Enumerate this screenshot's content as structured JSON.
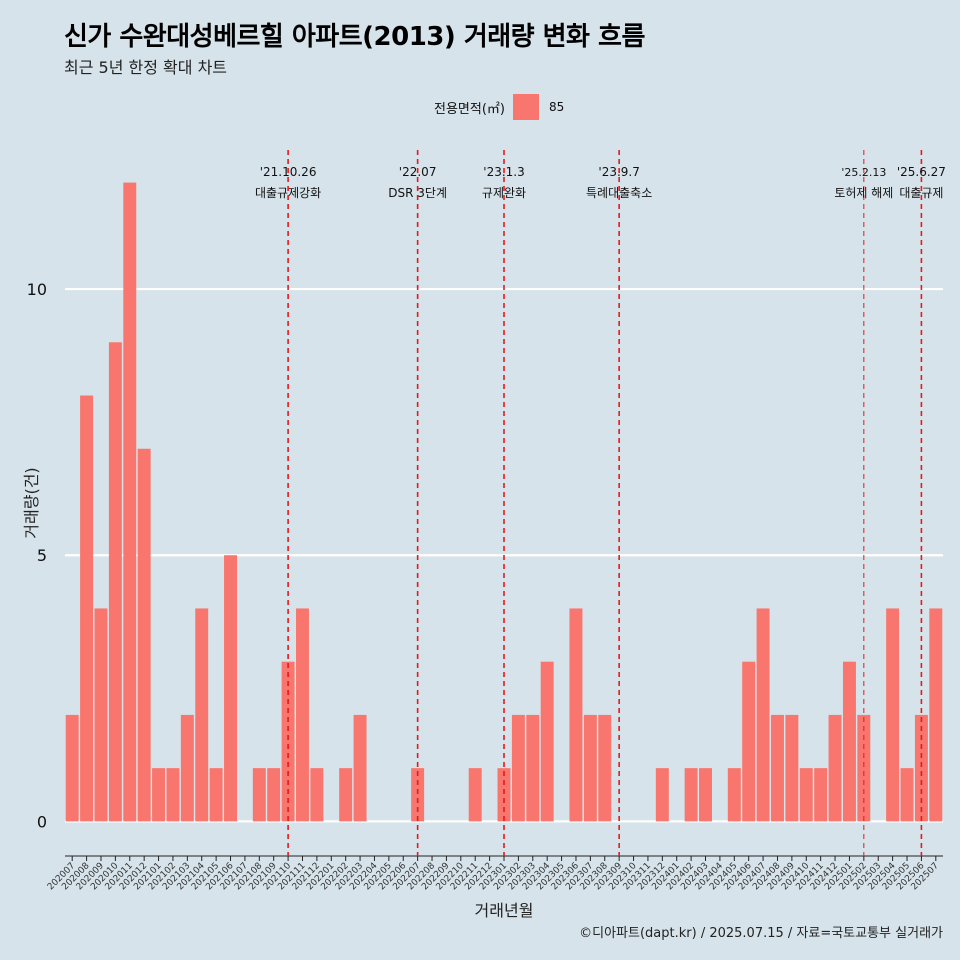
{
  "title": "신가 수완대성베르힐 아파트(2013) 거래량 변화 흐름",
  "subtitle": "최근 5년 한정 확대 차트",
  "legend": {
    "title": "전용면적(㎡)",
    "value": "85"
  },
  "caption": "©디아파트(dapt.kr) / 2025.07.15 / 자료=국토교통부 실거래가",
  "colors": {
    "background": "#d6e3ea",
    "bar": "#f8766d",
    "event_line": "#e41a1c",
    "grid": "#ffffff"
  },
  "chart_data": {
    "type": "bar",
    "title": "신가 수완대성베르힐 아파트(2013) 거래량 변화 흐름",
    "subtitle": "최근 5년 한정 확대 차트",
    "xlabel": "거래년월",
    "ylabel": "거래량(건)",
    "ylim": [
      -0.5,
      12.8
    ],
    "yticks": [
      0,
      5,
      10
    ],
    "grid": true,
    "legend_position": "top",
    "categories": [
      "202007",
      "202008",
      "202009",
      "202010",
      "202011",
      "202012",
      "202101",
      "202102",
      "202103",
      "202104",
      "202105",
      "202106",
      "202107",
      "202108",
      "202109",
      "202110",
      "202111",
      "202112",
      "202201",
      "202202",
      "202203",
      "202204",
      "202205",
      "202206",
      "202207",
      "202208",
      "202209",
      "202210",
      "202211",
      "202212",
      "202301",
      "202302",
      "202303",
      "202304",
      "202305",
      "202306",
      "202307",
      "202308",
      "202309",
      "202310",
      "202311",
      "202312",
      "202401",
      "202402",
      "202403",
      "202404",
      "202405",
      "202406",
      "202407",
      "202408",
      "202409",
      "202410",
      "202411",
      "202412",
      "202501",
      "202502",
      "202503",
      "202504",
      "202505",
      "202506",
      "202507"
    ],
    "series": [
      {
        "name": "85",
        "values": [
          2,
          8,
          4,
          9,
          12,
          7,
          1,
          1,
          2,
          4,
          1,
          5,
          0,
          1,
          1,
          3,
          4,
          1,
          0,
          1,
          2,
          0,
          0,
          0,
          1,
          0,
          0,
          0,
          1,
          0,
          1,
          2,
          2,
          3,
          0,
          4,
          2,
          2,
          0,
          0,
          0,
          1,
          0,
          1,
          1,
          0,
          1,
          3,
          4,
          2,
          2,
          1,
          1,
          2,
          3,
          2,
          0,
          4,
          1,
          2,
          4
        ]
      }
    ],
    "events": [
      {
        "date": "'21.10.26",
        "label": "대출규제강화",
        "category": "202110",
        "style": "dashed"
      },
      {
        "date": "'22.07",
        "label": "DSR 3단계",
        "category": "202207",
        "style": "dashed"
      },
      {
        "date": "'23.1.3",
        "label": "규제완화",
        "category": "202301",
        "style": "dashed"
      },
      {
        "date": "'23.9.7",
        "label": "특례대출축소",
        "category": "202309",
        "style": "dashed"
      },
      {
        "date": "'25.2.13",
        "label": "토허제 해제",
        "category": "202502",
        "style": "dashed-thin"
      },
      {
        "date": "'25.6.27",
        "label": "대출규제",
        "category": "202506",
        "style": "dashed"
      }
    ]
  }
}
